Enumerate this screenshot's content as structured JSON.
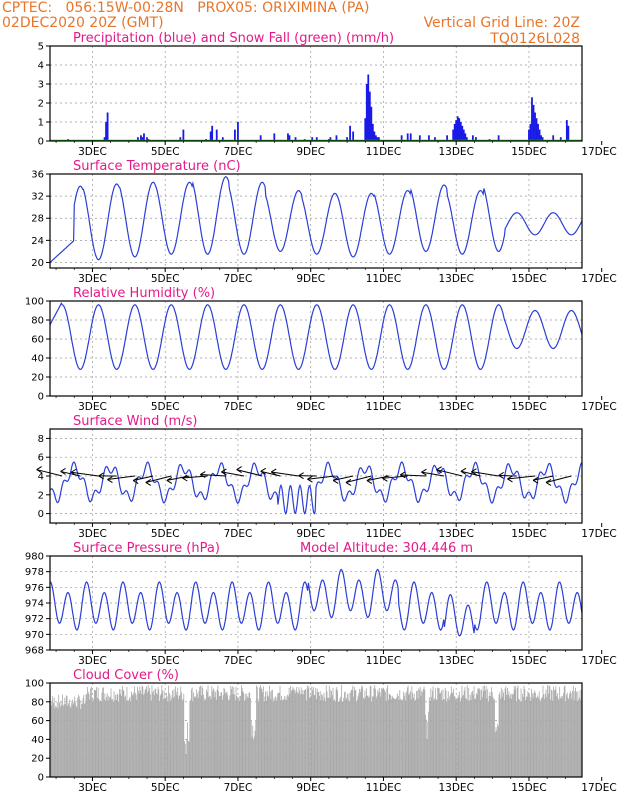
{
  "header": {
    "line1_left": "CPTEC:   056:15W-00:28N   PROX05: ORIXIMINA (PA)",
    "line2_left": "02DEC2020 20Z (GMT)",
    "line2_right": "Vertical Grid Line: 20Z",
    "line3_right": "TQ0126L028"
  },
  "colors": {
    "header": "#e8752a",
    "title": "#e4198a",
    "precip": "#1a1ae6",
    "snow": "#22aa22",
    "line": "#2b3ed6",
    "cloud": "#a9a9a9",
    "grid": "#999999"
  },
  "chart_data": [
    {
      "id": "precip",
      "type": "bar",
      "title": "Precipitation (blue) and Snow Fall (green) (mm/h)",
      "ylim": [
        0,
        5
      ],
      "yticks": [
        0,
        1,
        2,
        3,
        4,
        5
      ],
      "x_unit": "hours since 02DEC2020 20Z",
      "x_range": [
        0,
        351
      ],
      "xtick_labels": [
        "3DEC",
        "5DEC",
        "7DEC",
        "9DEC",
        "11DEC",
        "13DEC",
        "15DEC",
        "17DEC"
      ],
      "xtick_hours": [
        28,
        76,
        124,
        172,
        220,
        268,
        316,
        364
      ],
      "series": [
        {
          "name": "Precipitation",
          "hours": [
            12,
            36,
            37,
            38,
            58,
            60,
            61,
            62,
            64,
            65,
            86,
            88,
            103,
            106,
            107,
            110,
            114,
            122,
            124,
            139,
            148,
            157,
            158,
            162,
            168,
            173,
            176,
            184,
            185,
            189,
            196,
            198,
            200,
            208,
            209,
            210,
            211,
            212,
            213,
            214,
            215,
            216,
            217,
            232,
            236,
            238,
            244,
            250,
            254,
            262,
            266,
            267,
            268,
            269,
            270,
            271,
            272,
            273,
            274,
            275,
            279,
            281,
            290,
            296,
            316,
            317,
            318,
            319,
            320,
            321,
            322,
            323,
            324,
            325,
            332,
            337,
            341,
            342
          ],
          "values": [
            0.1,
            0.2,
            1.0,
            1.5,
            0.2,
            0.3,
            0.2,
            0.4,
            0.2,
            0.1,
            0.2,
            0.6,
            0.1,
            0.5,
            0.8,
            0.6,
            0.2,
            0.6,
            1.0,
            0.3,
            0.4,
            0.4,
            0.3,
            0.2,
            0.1,
            0.2,
            0.2,
            0.1,
            0.2,
            0.3,
            0.2,
            0.8,
            0.5,
            1.2,
            3.0,
            3.5,
            2.6,
            1.8,
            0.9,
            0.5,
            0.3,
            0.2,
            0.2,
            0.3,
            0.4,
            0.4,
            0.3,
            0.3,
            0.2,
            0.3,
            0.6,
            0.9,
            1.1,
            1.3,
            1.2,
            1.0,
            0.8,
            0.6,
            0.4,
            0.2,
            0.3,
            0.2,
            0.1,
            0.3,
            0.6,
            0.9,
            2.3,
            1.9,
            1.5,
            1.2,
            0.9,
            0.6,
            0.3,
            0.2,
            0.3,
            0.2,
            1.1,
            0.8
          ]
        },
        {
          "name": "Snow Fall",
          "values": [
            0
          ]
        }
      ]
    },
    {
      "id": "temp",
      "type": "line",
      "title": "Surface Temperature (nC)",
      "ylim": [
        19,
        36
      ],
      "yticks": [
        20,
        24,
        28,
        32,
        36
      ],
      "amp_max": [
        33.8,
        34.2,
        34.5,
        34.5,
        35.5,
        34.5,
        33,
        32.5,
        32.5,
        33,
        34,
        33,
        34.5,
        33.5,
        33,
        32,
        31.5
      ],
      "amp_min": [
        20,
        20.5,
        21,
        21.5,
        21.5,
        21.5,
        22,
        21.5,
        21,
        21.5,
        22,
        21.5,
        22,
        21.5,
        22,
        22,
        22
      ],
      "series": [
        {
          "name": "Temperature"
        }
      ]
    },
    {
      "id": "rh",
      "type": "line",
      "title": "Relative Humidity (%)",
      "ylim": [
        0,
        100
      ],
      "yticks": [
        0,
        20,
        40,
        60,
        80,
        100
      ],
      "series": [
        {
          "name": "Relative Humidity"
        }
      ]
    },
    {
      "id": "wind",
      "type": "line",
      "title": "Surface Wind (m/s)",
      "ylim": [
        -1,
        9
      ],
      "yticks": [
        0,
        2,
        4,
        6,
        8
      ],
      "series": [
        {
          "name": "Wind Speed"
        }
      ]
    },
    {
      "id": "press",
      "type": "line",
      "title": "Surface Pressure (hPa)",
      "subtitle": "Model Altitude: 304.446 m",
      "ylim": [
        968,
        980
      ],
      "yticks": [
        968,
        970,
        972,
        974,
        976,
        978,
        980
      ],
      "series": [
        {
          "name": "Pressure"
        }
      ]
    },
    {
      "id": "cloud",
      "type": "bar",
      "title": "Cloud Cover (%)",
      "ylim": [
        0,
        100
      ],
      "yticks": [
        0,
        20,
        40,
        60,
        80,
        100
      ],
      "series": [
        {
          "name": "Cloud Cover"
        }
      ]
    }
  ]
}
